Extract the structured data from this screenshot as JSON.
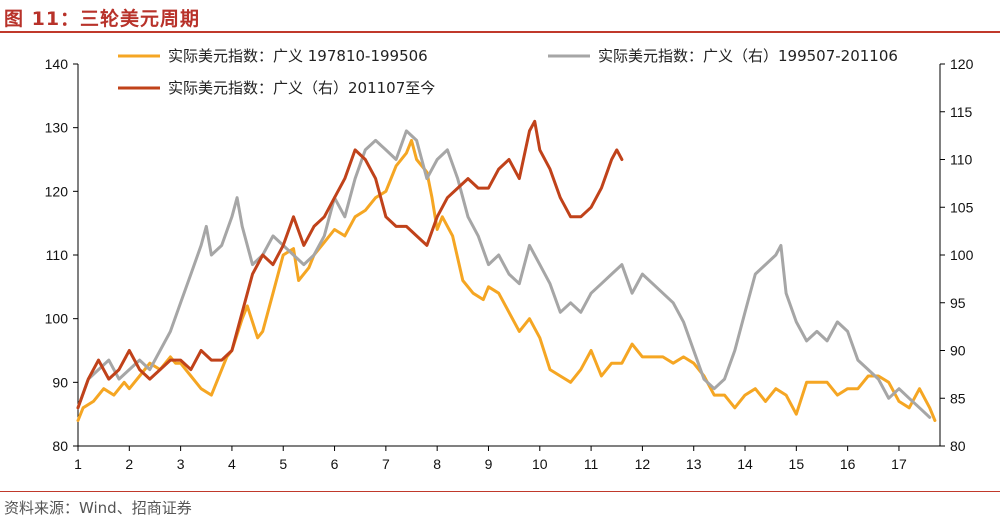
{
  "header": {
    "title": "图 11：三轮美元周期"
  },
  "footer": {
    "source": "资料来源：Wind、招商证券"
  },
  "colors": {
    "accent": "#c0392b",
    "series1": "#f5a623",
    "series2": "#a6a6a6",
    "series3": "#c0421a"
  },
  "chart_data": {
    "type": "line",
    "title": "图 11：三轮美元周期",
    "xlabel": "",
    "ylabel": "",
    "xlim": [
      1,
      17.8
    ],
    "ylim_left": [
      80,
      140
    ],
    "ylim_right": [
      80,
      120
    ],
    "x_ticks": [
      "1",
      "2",
      "3",
      "4",
      "5",
      "6",
      "7",
      "8",
      "9",
      "10",
      "11",
      "12",
      "13",
      "14",
      "15",
      "16",
      "17"
    ],
    "y_ticks_left": [
      "80",
      "90",
      "100",
      "110",
      "120",
      "130",
      "140"
    ],
    "y_ticks_right": [
      "80",
      "85",
      "90",
      "95",
      "100",
      "105",
      "110",
      "115",
      "120"
    ],
    "grid": false,
    "legend_position": "top",
    "series": [
      {
        "name": "实际美元指数：广义 197810-199506",
        "axis": "left",
        "color": "#f5a623",
        "x": [
          1.0,
          1.1,
          1.3,
          1.5,
          1.7,
          1.9,
          2.0,
          2.2,
          2.4,
          2.6,
          2.8,
          2.9,
          3.0,
          3.2,
          3.4,
          3.6,
          3.8,
          3.9,
          4.0,
          4.2,
          4.3,
          4.5,
          4.6,
          4.8,
          5.0,
          5.2,
          5.3,
          5.5,
          5.6,
          5.8,
          6.0,
          6.2,
          6.4,
          6.6,
          6.8,
          7.0,
          7.2,
          7.4,
          7.5,
          7.6,
          7.8,
          7.9,
          8.0,
          8.1,
          8.3,
          8.5,
          8.7,
          8.9,
          9.0,
          9.2,
          9.4,
          9.6,
          9.8,
          10.0,
          10.2,
          10.4,
          10.6,
          10.8,
          11.0,
          11.2,
          11.4,
          11.6,
          11.8,
          12.0,
          12.2,
          12.4,
          12.6,
          12.8,
          13.0,
          13.2,
          13.4,
          13.6,
          13.8,
          14.0,
          14.2,
          14.4,
          14.6,
          14.8,
          15.0,
          15.2,
          15.4,
          15.6,
          15.8,
          16.0,
          16.2,
          16.4,
          16.6,
          16.8,
          17.0,
          17.2,
          17.4,
          17.6,
          17.7
        ],
        "values": [
          84,
          86,
          87,
          89,
          88,
          90,
          89,
          91,
          93,
          92,
          94,
          93,
          93,
          91,
          89,
          88,
          92,
          94,
          95,
          100,
          102,
          97,
          98,
          104,
          110,
          111,
          106,
          108,
          110,
          112,
          114,
          113,
          116,
          117,
          119,
          120,
          124,
          126,
          128,
          125,
          123,
          119,
          114,
          116,
          113,
          106,
          104,
          103,
          105,
          104,
          101,
          98,
          100,
          97,
          92,
          91,
          90,
          92,
          95,
          91,
          93,
          93,
          96,
          94,
          94,
          94,
          93,
          94,
          93,
          91,
          88,
          88,
          86,
          88,
          89,
          87,
          89,
          88,
          85,
          90,
          90,
          90,
          88,
          89,
          89,
          91,
          91,
          90,
          87,
          86,
          89,
          86,
          84
        ]
      },
      {
        "name": "实际美元指数：广义（右）199507-201106",
        "axis": "right",
        "color": "#a6a6a6",
        "x": [
          1.0,
          1.2,
          1.4,
          1.6,
          1.8,
          2.0,
          2.2,
          2.4,
          2.6,
          2.8,
          3.0,
          3.2,
          3.4,
          3.5,
          3.6,
          3.8,
          4.0,
          4.1,
          4.2,
          4.4,
          4.6,
          4.8,
          5.0,
          5.2,
          5.4,
          5.6,
          5.8,
          6.0,
          6.2,
          6.4,
          6.6,
          6.8,
          7.0,
          7.2,
          7.4,
          7.6,
          7.8,
          8.0,
          8.2,
          8.4,
          8.6,
          8.8,
          9.0,
          9.2,
          9.4,
          9.6,
          9.8,
          10.0,
          10.2,
          10.4,
          10.6,
          10.8,
          11.0,
          11.2,
          11.4,
          11.6,
          11.8,
          12.0,
          12.2,
          12.4,
          12.6,
          12.8,
          13.0,
          13.2,
          13.4,
          13.6,
          13.8,
          14.0,
          14.2,
          14.4,
          14.6,
          14.7,
          14.8,
          15.0,
          15.2,
          15.4,
          15.6,
          15.8,
          16.0,
          16.2,
          16.4,
          16.6,
          16.8,
          17.0,
          17.2,
          17.4,
          17.6
        ],
        "values": [
          84,
          87,
          88,
          89,
          87,
          88,
          89,
          88,
          90,
          92,
          95,
          98,
          101,
          103,
          100,
          101,
          104,
          106,
          103,
          99,
          100,
          102,
          101,
          100,
          99,
          100,
          102,
          106,
          104,
          108,
          111,
          112,
          111,
          110,
          113,
          112,
          108,
          110,
          111,
          108,
          104,
          102,
          99,
          100,
          98,
          97,
          101,
          99,
          97,
          94,
          95,
          94,
          96,
          97,
          98,
          99,
          96,
          98,
          97,
          96,
          95,
          93,
          90,
          87,
          86,
          87,
          90,
          94,
          98,
          99,
          100,
          101,
          96,
          93,
          91,
          92,
          91,
          93,
          92,
          89,
          88,
          87,
          85,
          86,
          85,
          84,
          83
        ]
      },
      {
        "name": "实际美元指数：广义（右）201107至今",
        "axis": "right",
        "color": "#c0421a",
        "x": [
          1.0,
          1.2,
          1.4,
          1.6,
          1.8,
          2.0,
          2.2,
          2.4,
          2.6,
          2.8,
          3.0,
          3.2,
          3.4,
          3.6,
          3.8,
          4.0,
          4.2,
          4.4,
          4.6,
          4.8,
          5.0,
          5.2,
          5.4,
          5.6,
          5.8,
          6.0,
          6.2,
          6.4,
          6.6,
          6.8,
          7.0,
          7.2,
          7.4,
          7.6,
          7.8,
          8.0,
          8.2,
          8.4,
          8.6,
          8.8,
          9.0,
          9.2,
          9.4,
          9.6,
          9.8,
          9.9,
          10.0,
          10.2,
          10.4,
          10.6,
          10.8,
          11.0,
          11.2,
          11.4,
          11.5,
          11.6
        ],
        "values": [
          84,
          87,
          89,
          87,
          88,
          90,
          88,
          87,
          88,
          89,
          89,
          88,
          90,
          89,
          89,
          90,
          94,
          98,
          100,
          99,
          101,
          104,
          101,
          103,
          104,
          106,
          108,
          111,
          110,
          108,
          104,
          103,
          103,
          102,
          101,
          104,
          106,
          107,
          108,
          107,
          107,
          109,
          110,
          108,
          113,
          114,
          111,
          109,
          106,
          104,
          104,
          105,
          107,
          110,
          111,
          110
        ]
      }
    ]
  }
}
